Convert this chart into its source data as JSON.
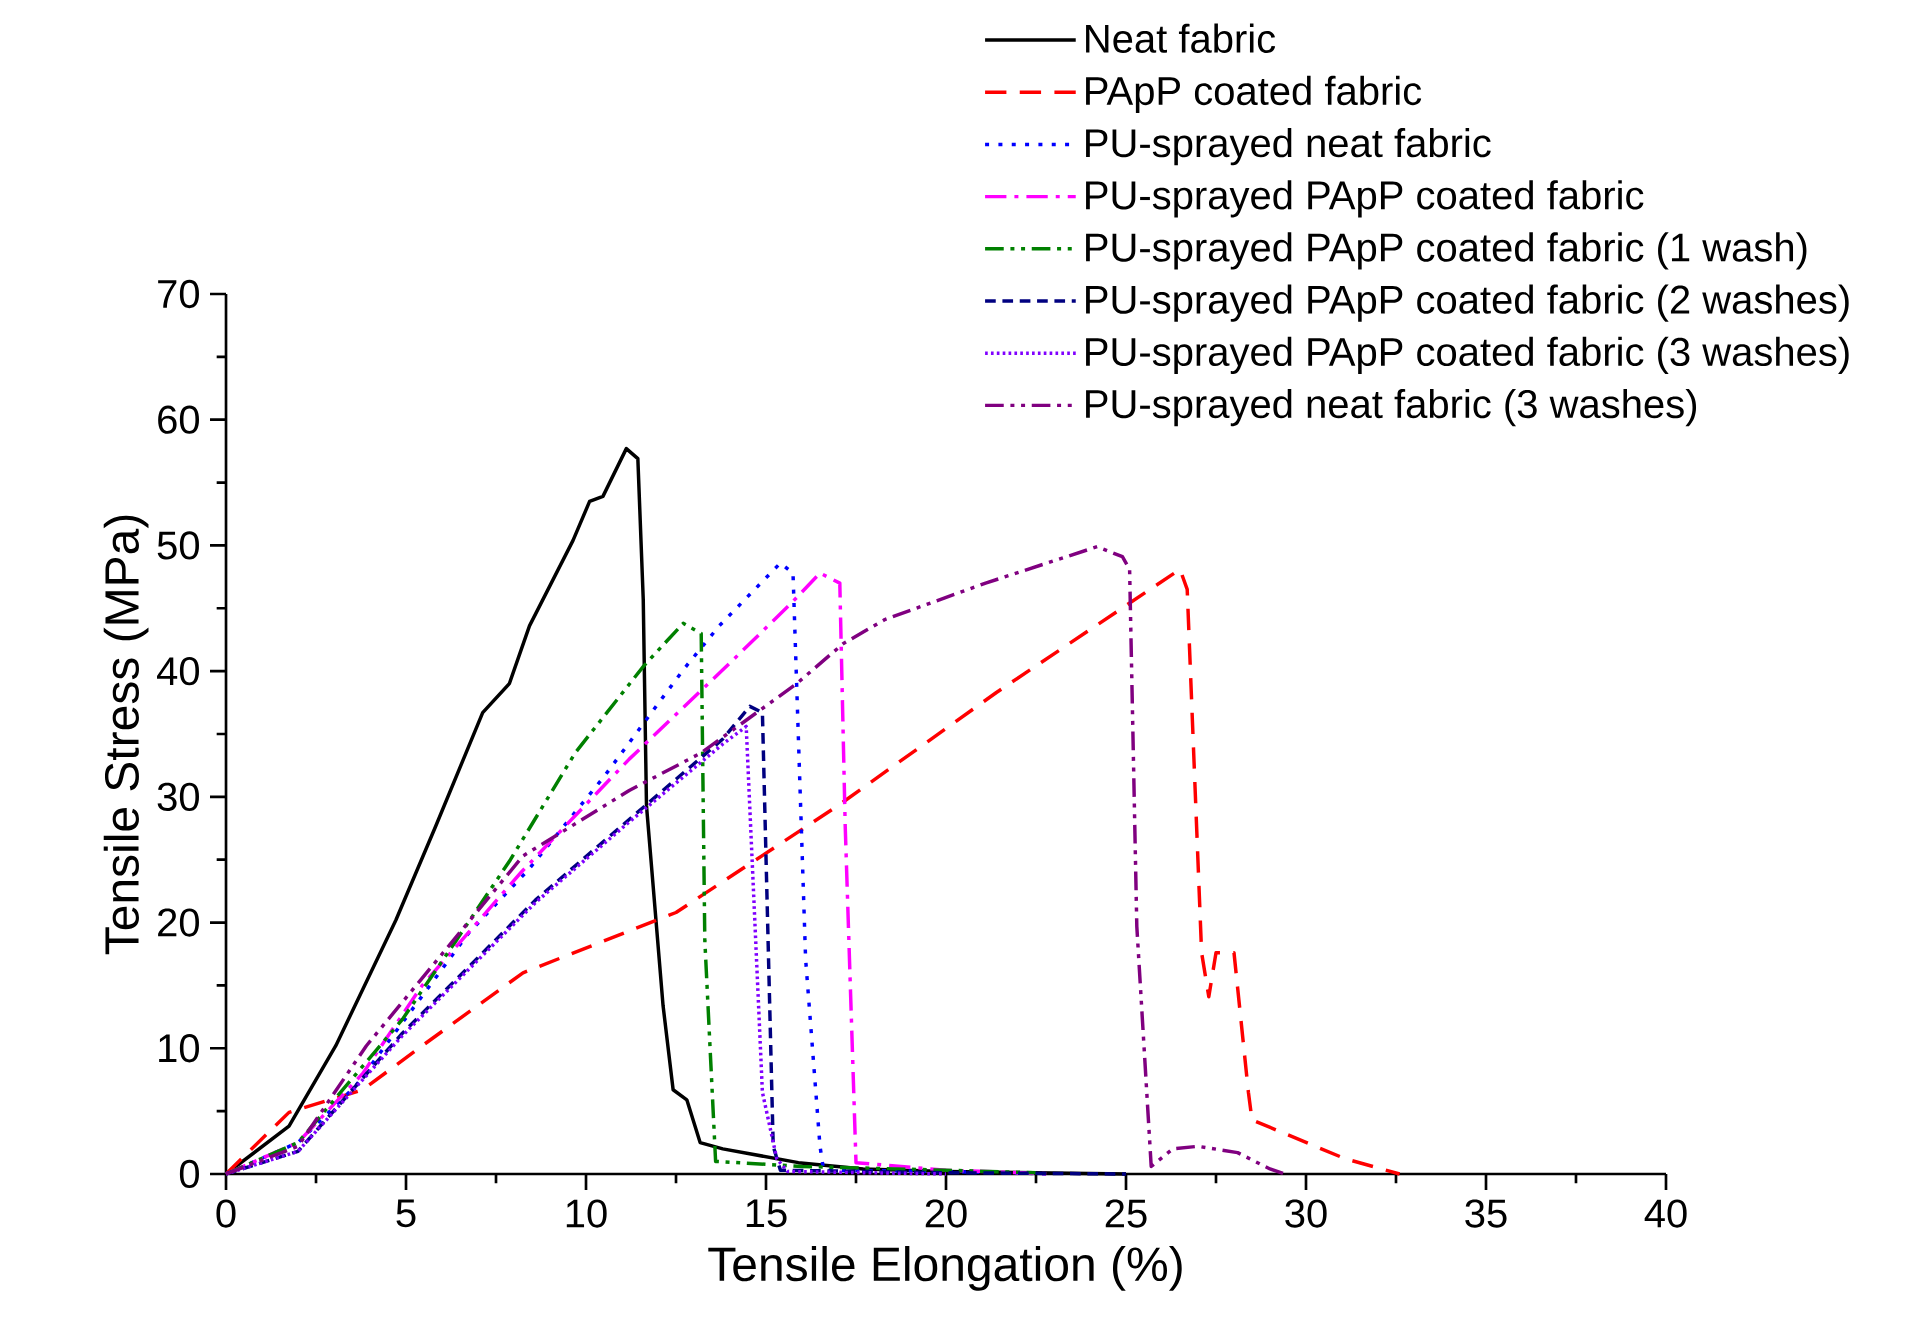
{
  "chart_data": {
    "type": "line",
    "xlabel": "Tensile Elongation (%)",
    "ylabel": "Tensile Stress (MPa)",
    "xlim": [
      0,
      40
    ],
    "ylim": [
      0,
      70
    ],
    "xticks": [
      0,
      5,
      10,
      15,
      20,
      25,
      30,
      35,
      40
    ],
    "yticks": [
      0,
      10,
      20,
      30,
      40,
      50,
      60,
      70
    ],
    "legend": "top right",
    "marker": "none",
    "series": [
      {
        "name": "Neat fabric",
        "color": "#000000",
        "line_style": "solid",
        "x": [
          0,
          1.75,
          3.05,
          4.72,
          5.83,
          7.13,
          7.87,
          8.43,
          9.64,
          10.1,
          10.47,
          11.12,
          11.44,
          11.59,
          11.68,
          12.14,
          12.42,
          12.8,
          13.17,
          13.8,
          15.9,
          17.7,
          20,
          25
        ],
        "values": [
          0,
          3.8,
          10.2,
          20.2,
          27.7,
          36.7,
          39.0,
          43.6,
          50.4,
          53.5,
          53.9,
          57.7,
          56.9,
          45.7,
          29.3,
          13.4,
          6.7,
          5.9,
          2.5,
          2.0,
          0.9,
          0.4,
          0.2,
          0
        ]
      },
      {
        "name": "PApP coated fabric",
        "color": "#ff0000",
        "line_style": "dashed",
        "x": [
          0,
          1.75,
          3.8,
          5.45,
          8.25,
          12.5,
          17,
          21.4,
          26.5,
          26.7,
          27.1,
          27.3,
          27.5,
          28.0,
          28.4,
          28.5,
          31.1,
          32.6
        ],
        "values": [
          0,
          4.9,
          6.7,
          10.2,
          16.0,
          20.8,
          29.3,
          38.3,
          48.1,
          46.5,
          17.6,
          14.1,
          17.6,
          17.6,
          6.5,
          4.3,
          1.2,
          0
        ]
      },
      {
        "name": "PU-sprayed neat fabric",
        "color": "#0000ff",
        "line_style": "dotted",
        "x": [
          0,
          2,
          3.6,
          6.75,
          8.4,
          10.5,
          12.7,
          13.7,
          15.4,
          15.75,
          16.1,
          16.5,
          16.6,
          20,
          23
        ],
        "values": [
          0,
          2.5,
          7.0,
          19.2,
          24.2,
          31.6,
          40.1,
          43.6,
          48.6,
          47.8,
          17.1,
          2.2,
          0.3,
          0.2,
          0
        ]
      },
      {
        "name": "PU-sprayed PApP coated fabric",
        "color": "#ff00ff",
        "line_style": "dashdot",
        "x": [
          0,
          2,
          3.8,
          5.45,
          8.2,
          11.2,
          13.8,
          15.7,
          16.5,
          17.05,
          17.2,
          17.5,
          20,
          23
        ],
        "values": [
          0,
          2.5,
          8.0,
          15,
          24,
          33,
          40.1,
          45.4,
          47.8,
          47.0,
          27.7,
          0.9,
          0.3,
          0
        ]
      },
      {
        "name": "PU-sprayed PApP coated fabric (1 wash)",
        "color": "#008000",
        "line_style": "dashdotdot",
        "x": [
          0,
          2,
          4.9,
          6.4,
          7.9,
          9.7,
          11.6,
          12.7,
          13.2,
          13.3,
          13.6,
          16,
          20,
          22.5
        ],
        "values": [
          0,
          2.5,
          12.3,
          18.6,
          25,
          33.5,
          40.4,
          43.8,
          43.0,
          18.6,
          1.0,
          0.6,
          0.3,
          0.1
        ]
      },
      {
        "name": "PU-sprayed PApP coated fabric (2 washes)",
        "color": "#000080",
        "line_style": "shortdashed",
        "x": [
          0,
          2,
          4.9,
          8.6,
          11.2,
          13.8,
          14.55,
          14.9,
          15.2,
          15.4,
          20,
          25
        ],
        "values": [
          0,
          1.8,
          11.2,
          21.8,
          28.2,
          34.6,
          37.2,
          36.7,
          2.2,
          0.3,
          0.1,
          0
        ]
      },
      {
        "name": "PU-sprayed PApP coated fabric (3 washes)",
        "color": "#8000ff",
        "line_style": "densedotted",
        "x": [
          0,
          2,
          4.9,
          8.6,
          11.2,
          13.8,
          14.45,
          14.9,
          15.3,
          15.6,
          20
        ],
        "values": [
          0,
          1.8,
          11.0,
          21.6,
          28,
          34.2,
          35.6,
          6.5,
          1.2,
          0.2,
          0
        ]
      },
      {
        "name": "PU-sprayed neat fabric (3 washes)",
        "color": "#800080",
        "line_style": "dashdotdot",
        "x": [
          0,
          2,
          3.9,
          8.25,
          11.2,
          13.2,
          15.85,
          17.15,
          18.3,
          21.1,
          24.2,
          24.9,
          25.1,
          25.3,
          25.7,
          26.3,
          27.0,
          28.1,
          29.0,
          29.4
        ],
        "values": [
          0,
          2.2,
          10.2,
          25.3,
          30.5,
          33.5,
          39.0,
          42.2,
          44.1,
          47.0,
          49.9,
          49.1,
          48.1,
          19.7,
          0.6,
          2.0,
          2.2,
          1.7,
          0.4,
          0
        ]
      }
    ]
  }
}
